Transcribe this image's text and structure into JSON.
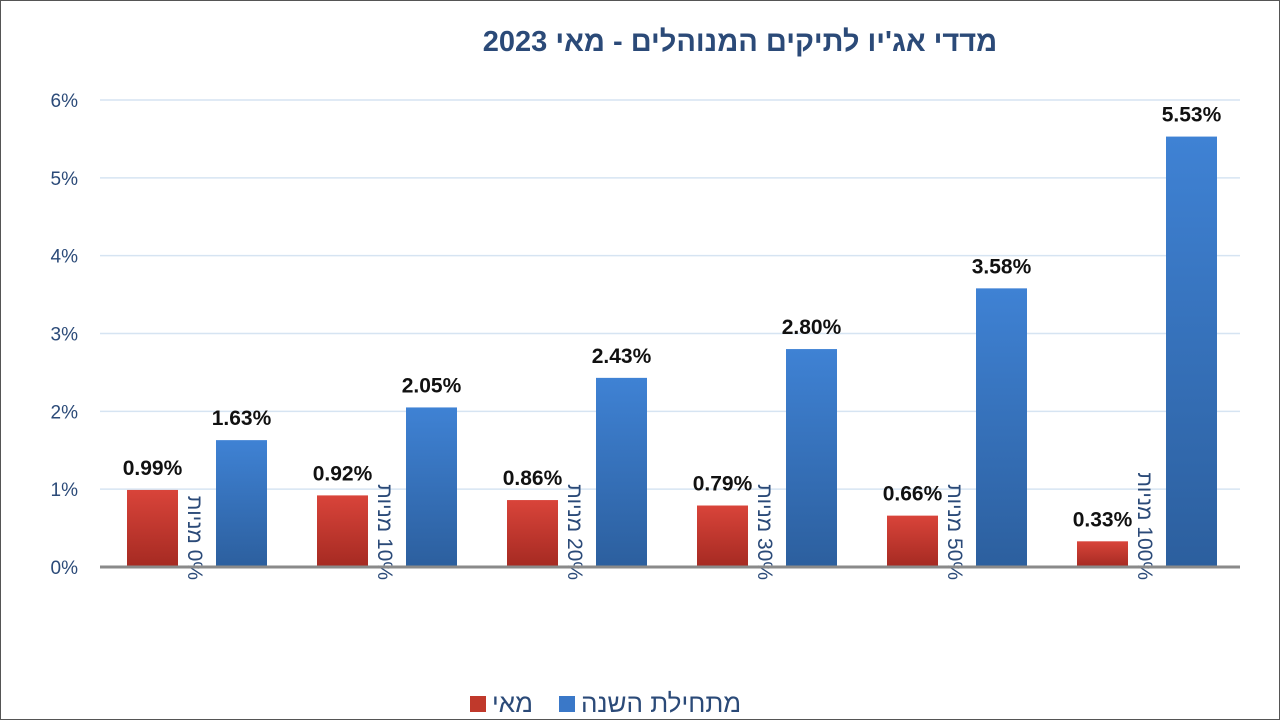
{
  "chart_data": {
    "type": "bar",
    "title": "מדדי אג'יו לתיקים המנוהלים  - מאי 2023",
    "categories": [
      "0% מניות",
      "10% מניות",
      "20% מניות",
      "30% מניות",
      "50% מניות",
      "100% מניות"
    ],
    "series": [
      {
        "name": "מאי",
        "values": [
          0.99,
          0.92,
          0.86,
          0.79,
          0.66,
          0.33
        ],
        "labels": [
          "0.99%",
          "0.92%",
          "0.86%",
          "0.79%",
          "0.66%",
          "0.33%"
        ],
        "color": "#c0392b"
      },
      {
        "name": "מתחילת השנה",
        "values": [
          1.63,
          2.05,
          2.43,
          2.8,
          3.58,
          5.53
        ],
        "labels": [
          "1.63%",
          "2.05%",
          "2.43%",
          "2.80%",
          "3.58%",
          "5.53%"
        ],
        "color": "#3a78c8"
      }
    ],
    "ylim": [
      0,
      6
    ],
    "yticks": [
      "0%",
      "1%",
      "2%",
      "3%",
      "4%",
      "5%",
      "6%"
    ],
    "grid": true,
    "legend": "bottom"
  }
}
